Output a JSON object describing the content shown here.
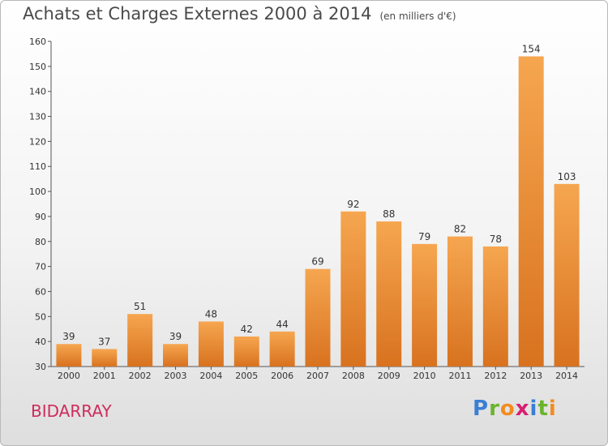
{
  "header": {
    "title": "Achats et Charges Externes 2000 à 2014",
    "subtitle": "(en milliers d'€)"
  },
  "footer": {
    "commune": "BIDARRAY",
    "logo": {
      "letters": [
        {
          "ch": "P",
          "color": "#3a7fd5"
        },
        {
          "ch": "r",
          "color": "#6ab42d"
        },
        {
          "ch": "o",
          "color": "#f28c1f"
        },
        {
          "ch": "x",
          "color": "#d81f72"
        },
        {
          "ch": "i",
          "color": "#3a7fd5"
        },
        {
          "ch": "t",
          "color": "#6ab42d"
        },
        {
          "ch": "i",
          "color": "#f28c1f"
        }
      ]
    }
  },
  "chart_data": {
    "type": "bar",
    "categories": [
      "2000",
      "2001",
      "2002",
      "2003",
      "2004",
      "2005",
      "2006",
      "2007",
      "2008",
      "2009",
      "2010",
      "2011",
      "2012",
      "2013",
      "2014"
    ],
    "values": [
      39,
      37,
      51,
      39,
      48,
      42,
      44,
      69,
      92,
      88,
      79,
      82,
      78,
      154,
      103
    ],
    "title": "Achats et Charges Externes 2000 à 2014",
    "subtitle": "(en milliers d'€)",
    "ylim": [
      30,
      160
    ],
    "yticks": [
      30,
      40,
      50,
      60,
      70,
      80,
      90,
      100,
      110,
      120,
      130,
      140,
      150,
      160
    ],
    "grid": false,
    "data_labels": true,
    "colors": {
      "bar_light": "#f6a650",
      "bar_dark": "#d8721f",
      "axis": "#555555",
      "text": "#333333"
    }
  }
}
